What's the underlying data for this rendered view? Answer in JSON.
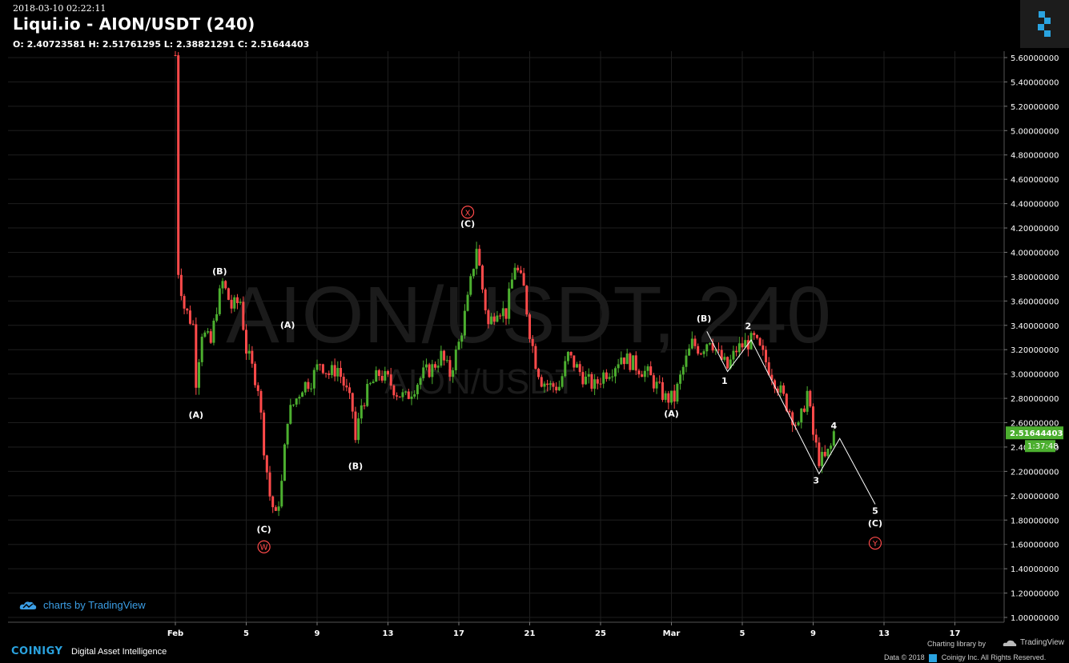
{
  "header": {
    "timestamp": "2018-03-10 02:22:11",
    "title": "Liqui.io - AION/USDT (240)",
    "ohlc": "O: 2.40723581 H: 2.51761295 L: 2.38821291 C: 2.51644403"
  },
  "watermark": {
    "main": "AION/USDT, 240",
    "sub": "AION/USDT"
  },
  "branding": {
    "tv_badge": "charts by TradingView",
    "coinigy": "COINIGY",
    "tagline": "Digital Asset Intelligence",
    "charting_library": "Charting library by",
    "tradingview": "TradingView",
    "data_credit": "Data © 2018",
    "copyright": "Coinigy Inc. All Rights Reserved."
  },
  "colors": {
    "up": "#4caf2f",
    "down": "#ff4a4a",
    "grid": "#1e1e1e",
    "text": "#ffffff",
    "price_tag": "#4caf2f",
    "accent": "#2aa3e0"
  },
  "chart_data": {
    "type": "candlestick",
    "price_axis": {
      "min": 1.0,
      "max": 5.6,
      "ticks": [
        "5.60000000",
        "5.40000000",
        "5.20000000",
        "5.00000000",
        "4.80000000",
        "4.60000000",
        "4.40000000",
        "4.20000000",
        "4.00000000",
        "3.80000000",
        "3.60000000",
        "3.40000000",
        "3.20000000",
        "3.00000000",
        "2.80000000",
        "2.60000000",
        "2.40000000",
        "2.20000000",
        "2.00000000",
        "1.80000000",
        "1.60000000",
        "1.40000000",
        "1.20000000",
        "1.00000000"
      ]
    },
    "time_axis": {
      "ticks": [
        {
          "label": "Feb",
          "date": "2018-02-01"
        },
        {
          "label": "5",
          "date": "2018-02-05"
        },
        {
          "label": "9",
          "date": "2018-02-09"
        },
        {
          "label": "13",
          "date": "2018-02-13"
        },
        {
          "label": "17",
          "date": "2018-02-17"
        },
        {
          "label": "21",
          "date": "2018-02-21"
        },
        {
          "label": "25",
          "date": "2018-02-25"
        },
        {
          "label": "Mar",
          "date": "2018-03-01"
        },
        {
          "label": "5",
          "date": "2018-03-05"
        },
        {
          "label": "9",
          "date": "2018-03-09"
        },
        {
          "label": "13",
          "date": "2018-03-13"
        },
        {
          "label": "17",
          "date": "2018-03-17"
        }
      ]
    },
    "last_price": "2.51644403",
    "countdown": "1:37:48",
    "price_path": [
      [
        "2018-02-01T00:00",
        5.62
      ],
      [
        "2018-02-01T04:00",
        3.85
      ],
      [
        "2018-02-01T12:00",
        3.55
      ],
      [
        "2018-02-02T00:00",
        3.4
      ],
      [
        "2018-02-02T04:00",
        2.95
      ],
      [
        "2018-02-02T12:00",
        3.35
      ],
      [
        "2018-02-03T00:00",
        3.25
      ],
      [
        "2018-02-03T08:00",
        3.55
      ],
      [
        "2018-02-03T16:00",
        3.75
      ],
      [
        "2018-02-04T04:00",
        3.55
      ],
      [
        "2018-02-04T16:00",
        3.6
      ],
      [
        "2018-02-05T00:00",
        3.2
      ],
      [
        "2018-02-05T08:00",
        3.05
      ],
      [
        "2018-02-05T16:00",
        2.9
      ],
      [
        "2018-02-06T00:00",
        2.4
      ],
      [
        "2018-02-06T08:00",
        2.0
      ],
      [
        "2018-02-06T16:00",
        1.82
      ],
      [
        "2018-02-07T00:00",
        2.1
      ],
      [
        "2018-02-07T08:00",
        2.65
      ],
      [
        "2018-02-07T16:00",
        2.75
      ],
      [
        "2018-02-08T04:00",
        2.9
      ],
      [
        "2018-02-08T16:00",
        2.95
      ],
      [
        "2018-02-09T04:00",
        3.1
      ],
      [
        "2018-02-09T16:00",
        3.0
      ],
      [
        "2018-02-10T04:00",
        3.05
      ],
      [
        "2018-02-10T16:00",
        2.85
      ],
      [
        "2018-02-11T00:00",
        2.7
      ],
      [
        "2018-02-11T04:00",
        2.45
      ],
      [
        "2018-02-11T12:00",
        2.75
      ],
      [
        "2018-02-12T00:00",
        2.9
      ],
      [
        "2018-02-12T12:00",
        3.0
      ],
      [
        "2018-02-13T00:00",
        2.95
      ],
      [
        "2018-02-13T12:00",
        2.85
      ],
      [
        "2018-02-14T00:00",
        2.8
      ],
      [
        "2018-02-14T12:00",
        2.9
      ],
      [
        "2018-02-15T00:00",
        3.0
      ],
      [
        "2018-02-15T12:00",
        3.05
      ],
      [
        "2018-02-16T00:00",
        3.15
      ],
      [
        "2018-02-16T12:00",
        3.0
      ],
      [
        "2018-02-17T00:00",
        3.25
      ],
      [
        "2018-02-17T12:00",
        3.6
      ],
      [
        "2018-02-18T00:00",
        4.05
      ],
      [
        "2018-02-18T08:00",
        3.7
      ],
      [
        "2018-02-18T16:00",
        3.4
      ],
      [
        "2018-02-19T04:00",
        3.55
      ],
      [
        "2018-02-19T16:00",
        3.5
      ],
      [
        "2018-02-20T04:00",
        3.9
      ],
      [
        "2018-02-20T16:00",
        3.7
      ],
      [
        "2018-02-21T00:00",
        3.35
      ],
      [
        "2018-02-21T08:00",
        3.1
      ],
      [
        "2018-02-21T16:00",
        2.95
      ],
      [
        "2018-02-22T04:00",
        2.9
      ],
      [
        "2018-02-22T16:00",
        2.9
      ],
      [
        "2018-02-23T04:00",
        3.15
      ],
      [
        "2018-02-23T16:00",
        3.05
      ],
      [
        "2018-02-24T04:00",
        2.95
      ],
      [
        "2018-02-24T16:00",
        2.9
      ],
      [
        "2018-02-25T04:00",
        3.0
      ],
      [
        "2018-02-25T16:00",
        3.05
      ],
      [
        "2018-02-26T04:00",
        3.15
      ],
      [
        "2018-02-26T16:00",
        3.1
      ],
      [
        "2018-02-27T04:00",
        3.05
      ],
      [
        "2018-02-27T16:00",
        3.0
      ],
      [
        "2018-02-28T04:00",
        2.9
      ],
      [
        "2018-02-28T16:00",
        2.8
      ],
      [
        "2018-03-01T04:00",
        2.8
      ],
      [
        "2018-03-01T16:00",
        3.05
      ],
      [
        "2018-03-02T04:00",
        3.25
      ],
      [
        "2018-03-02T16:00",
        3.2
      ],
      [
        "2018-03-03T04:00",
        3.3
      ],
      [
        "2018-03-03T16:00",
        3.15
      ],
      [
        "2018-03-04T04:00",
        3.05
      ],
      [
        "2018-03-04T16:00",
        3.2
      ],
      [
        "2018-03-05T04:00",
        3.25
      ],
      [
        "2018-03-05T16:00",
        3.28
      ],
      [
        "2018-03-06T04:00",
        3.15
      ],
      [
        "2018-03-06T16:00",
        3.0
      ],
      [
        "2018-03-07T04:00",
        2.85
      ],
      [
        "2018-03-07T16:00",
        2.7
      ],
      [
        "2018-03-08T04:00",
        2.55
      ],
      [
        "2018-03-08T16:00",
        2.85
      ],
      [
        "2018-03-09T00:00",
        2.5
      ],
      [
        "2018-03-09T08:00",
        2.3
      ],
      [
        "2018-03-09T16:00",
        2.3
      ],
      [
        "2018-03-10T00:00",
        2.4
      ],
      [
        "2018-03-10T04:00",
        2.52
      ]
    ],
    "wave_path_1": [
      [
        "2018-03-03T00:00",
        3.35
      ],
      [
        "2018-03-04T04:00",
        3.02
      ],
      [
        "2018-03-05T12:00",
        3.28
      ],
      [
        "2018-03-09T08:00",
        2.18
      ],
      [
        "2018-03-10T12:00",
        2.47
      ],
      [
        "2018-03-12T12:00",
        1.93
      ]
    ],
    "wave_labels": [
      {
        "text": "(B)",
        "date": "2018-02-03T12:00",
        "price": 3.82,
        "color": "#ffffff"
      },
      {
        "text": "(A)",
        "date": "2018-02-02T04:00",
        "price": 2.64,
        "color": "#ffffff"
      },
      {
        "text": "(C)",
        "date": "2018-02-06T00:00",
        "price": 1.7,
        "color": "#ffffff"
      },
      {
        "text": "(A)",
        "date": "2018-02-07T08:00",
        "price": 3.38,
        "color": "#ffffff"
      },
      {
        "text": "(B)",
        "date": "2018-02-11T04:00",
        "price": 2.22,
        "color": "#ffffff"
      },
      {
        "text": "(C)",
        "date": "2018-02-17T12:00",
        "price": 4.21,
        "color": "#ffffff"
      },
      {
        "text": "(A)",
        "date": "2018-02-29T00:00",
        "price": 2.65,
        "color": "#ffffff"
      },
      {
        "text": "(B)",
        "date": "2018-03-02T20:00",
        "price": 3.43,
        "color": "#ffffff"
      },
      {
        "text": "2",
        "date": "2018-03-05T08:00",
        "price": 3.37,
        "color": "#ffffff"
      },
      {
        "text": "1",
        "date": "2018-03-04T00:00",
        "price": 2.92,
        "color": "#ffffff"
      },
      {
        "text": "3",
        "date": "2018-03-09T04:00",
        "price": 2.1,
        "color": "#ffffff"
      },
      {
        "text": "4",
        "date": "2018-03-10T04:00",
        "price": 2.55,
        "color": "#ffffff"
      },
      {
        "text": "5",
        "date": "2018-03-12T12:00",
        "price": 1.85,
        "color": "#ffffff"
      },
      {
        "text": "(C)",
        "date": "2018-03-12T12:00",
        "price": 1.75,
        "color": "#ffffff"
      }
    ],
    "circled_labels": [
      {
        "text": "W",
        "date": "2018-02-06T00:00",
        "price": 1.58
      },
      {
        "text": "X",
        "date": "2018-02-17T12:00",
        "price": 4.33
      },
      {
        "text": "Y",
        "date": "2018-03-12T12:00",
        "price": 1.61
      }
    ]
  }
}
